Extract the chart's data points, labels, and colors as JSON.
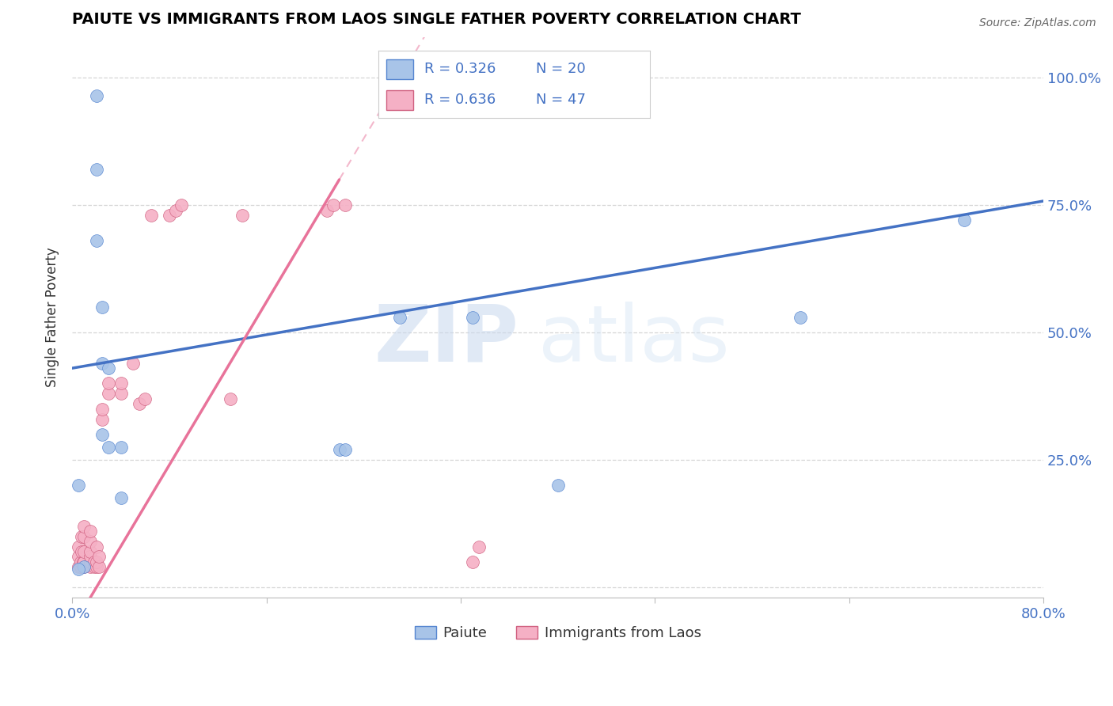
{
  "title": "PAIUTE VS IMMIGRANTS FROM LAOS SINGLE FATHER POVERTY CORRELATION CHART",
  "source": "Source: ZipAtlas.com",
  "xlabel_paiute": "Paiute",
  "xlabel_laos": "Immigrants from Laos",
  "ylabel": "Single Father Poverty",
  "xlim": [
    0.0,
    0.8
  ],
  "ylim": [
    -0.02,
    1.08
  ],
  "paiute_R": 0.326,
  "paiute_N": 20,
  "laos_R": 0.636,
  "laos_N": 47,
  "paiute_color": "#a8c4e8",
  "laos_color": "#f5b0c5",
  "paiute_line_color": "#4472c4",
  "laos_line_color": "#e8739a",
  "watermark_zip": "ZIP",
  "watermark_atlas": "atlas",
  "paiute_x": [
    0.02,
    0.02,
    0.02,
    0.025,
    0.025,
    0.025,
    0.03,
    0.03,
    0.04,
    0.04,
    0.22,
    0.225,
    0.27,
    0.33,
    0.4,
    0.6,
    0.735,
    0.01,
    0.005,
    0.005
  ],
  "paiute_y": [
    0.965,
    0.82,
    0.68,
    0.55,
    0.44,
    0.3,
    0.43,
    0.275,
    0.275,
    0.175,
    0.27,
    0.27,
    0.53,
    0.53,
    0.2,
    0.53,
    0.72,
    0.04,
    0.2,
    0.035
  ],
  "laos_x": [
    0.005,
    0.005,
    0.005,
    0.007,
    0.007,
    0.008,
    0.008,
    0.009,
    0.009,
    0.01,
    0.01,
    0.01,
    0.01,
    0.01,
    0.015,
    0.015,
    0.015,
    0.015,
    0.015,
    0.015,
    0.018,
    0.018,
    0.02,
    0.02,
    0.02,
    0.022,
    0.022,
    0.025,
    0.025,
    0.03,
    0.03,
    0.04,
    0.04,
    0.05,
    0.055,
    0.06,
    0.065,
    0.08,
    0.085,
    0.09,
    0.13,
    0.14,
    0.21,
    0.215,
    0.225,
    0.33,
    0.335
  ],
  "laos_y": [
    0.04,
    0.06,
    0.08,
    0.04,
    0.05,
    0.07,
    0.1,
    0.04,
    0.05,
    0.04,
    0.05,
    0.07,
    0.1,
    0.12,
    0.04,
    0.05,
    0.06,
    0.07,
    0.09,
    0.11,
    0.04,
    0.05,
    0.04,
    0.05,
    0.08,
    0.04,
    0.06,
    0.33,
    0.35,
    0.38,
    0.4,
    0.38,
    0.4,
    0.44,
    0.36,
    0.37,
    0.73,
    0.73,
    0.74,
    0.75,
    0.37,
    0.73,
    0.74,
    0.75,
    0.75,
    0.05,
    0.08
  ],
  "laos_line_x_start": 0.0,
  "laos_line_x_solid_end": 0.22,
  "laos_line_x_dash_end": 0.42,
  "paiute_line_intercept": 0.43,
  "paiute_line_slope": 0.41,
  "laos_line_intercept": -0.08,
  "laos_line_slope": 4.0,
  "grid_color": "#cccccc",
  "background_color": "#ffffff",
  "title_color": "#000000",
  "tick_label_color": "#4472c4"
}
